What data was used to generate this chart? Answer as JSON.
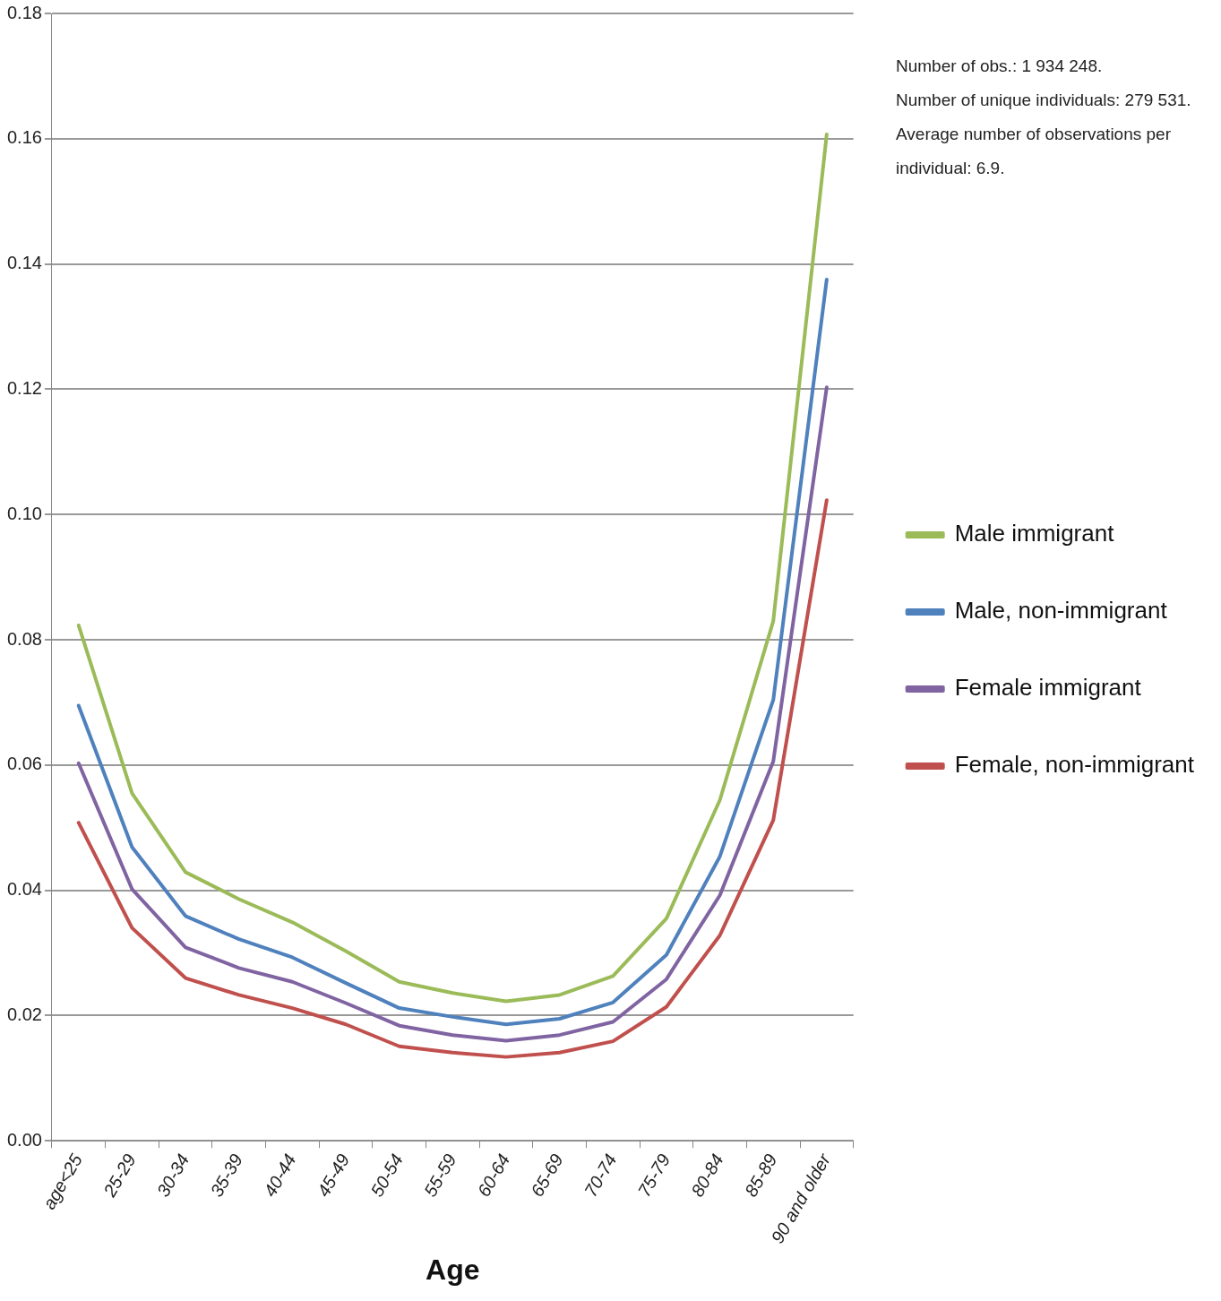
{
  "chart_data": {
    "type": "line",
    "xlabel": "Age",
    "categories": [
      "age<25",
      "25-29",
      "30-34",
      "35-39",
      "40-44",
      "45-49",
      "50-54",
      "55-59",
      "60-64",
      "65-69",
      "70-74",
      "75-79",
      "80-84",
      "85-89",
      "90 and older"
    ],
    "series": [
      {
        "name": "Male immigrant",
        "color": "#9bbb59",
        "values": [
          0.0823,
          0.0555,
          0.0429,
          0.0386,
          0.0349,
          0.0303,
          0.0254,
          0.0236,
          0.0223,
          0.0233,
          0.0263,
          0.0355,
          0.0544,
          0.083,
          0.1607
        ]
      },
      {
        "name": "Male, non-immigrant",
        "color": "#4f81bd",
        "values": [
          0.0695,
          0.0469,
          0.0359,
          0.0322,
          0.0293,
          0.0252,
          0.0212,
          0.0198,
          0.0186,
          0.0195,
          0.0221,
          0.0297,
          0.0454,
          0.0704,
          0.1375
        ]
      },
      {
        "name": "Female immigrant",
        "color": "#8064a2",
        "values": [
          0.0603,
          0.0402,
          0.0309,
          0.0276,
          0.0254,
          0.022,
          0.0184,
          0.0169,
          0.016,
          0.0169,
          0.019,
          0.0258,
          0.0392,
          0.0606,
          0.1203
        ]
      },
      {
        "name": "Female, non-immigrant",
        "color": "#c0504d",
        "values": [
          0.0508,
          0.034,
          0.026,
          0.0233,
          0.0212,
          0.0186,
          0.0151,
          0.0141,
          0.0134,
          0.0141,
          0.0159,
          0.0214,
          0.0328,
          0.0512,
          0.1023
        ]
      }
    ],
    "ylim": [
      0,
      0.18
    ],
    "yticks": [
      {
        "value": 0,
        "label": "0.00"
      },
      {
        "value": 0.02,
        "label": "0.02"
      },
      {
        "value": 0.04,
        "label": "0.04"
      },
      {
        "value": 0.06,
        "label": "0.06"
      },
      {
        "value": 0.08,
        "label": "0.08"
      },
      {
        "value": 0.1,
        "label": "0.10"
      },
      {
        "value": 0.12,
        "label": "0.12"
      },
      {
        "value": 0.14,
        "label": "0.14"
      },
      {
        "value": 0.16,
        "label": "0.16"
      },
      {
        "value": 0.18,
        "label": "0.18"
      }
    ],
    "grid": "y",
    "legend": "right",
    "marker": "none",
    "line_style": "solid",
    "annotations": [
      "Number of obs.: 1 934 248.",
      "Number of unique individuals: 279 531.",
      "Average number of observations per individual: 6.9."
    ]
  }
}
